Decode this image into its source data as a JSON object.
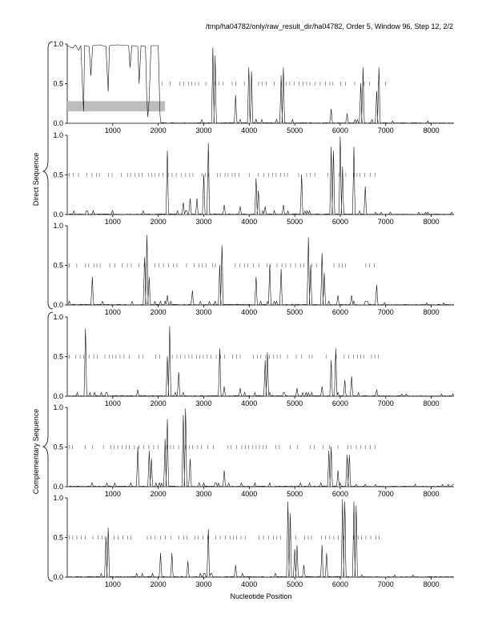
{
  "chart_data": {
    "type": "line",
    "title": "/tmp/ha04782/only/raw_result_dir/ha04782, Order 5, Window 96, Step 12, 2/2",
    "xlabel": "Nucleotide Position",
    "group_labels": [
      "Direct Sequence",
      "Complementary Sequence"
    ],
    "xlim": [
      0,
      8500
    ],
    "ylim": [
      0,
      1.0
    ],
    "x_ticks": [
      "1000",
      "2000",
      "3000",
      "4000",
      "5000",
      "6000",
      "7000",
      "8000"
    ],
    "x_tick_values": [
      1000,
      2000,
      3000,
      4000,
      5000,
      6000,
      7000,
      8000
    ],
    "y_ticks": [
      "0.0",
      "0.5",
      "1.0"
    ],
    "y_tick_values": [
      0,
      0.5,
      1.0
    ],
    "series_end": 8500,
    "panels": [
      {
        "name": "direct-frame-1",
        "high_region": [
          [
            0,
            0.98
          ],
          [
            120,
            0.95
          ],
          [
            180,
            0.99
          ],
          [
            250,
            0.92
          ],
          [
            300,
            0.98
          ],
          [
            340,
            0.4
          ],
          [
            360,
            0.15
          ],
          [
            380,
            0.98
          ],
          [
            480,
            0.97
          ],
          [
            520,
            0.6
          ],
          [
            560,
            0.98
          ],
          [
            700,
            0.99
          ],
          [
            850,
            0.97
          ],
          [
            900,
            0.4
          ],
          [
            930,
            0.98
          ],
          [
            1100,
            0.99
          ],
          [
            1350,
            0.98
          ],
          [
            1380,
            0.7
          ],
          [
            1420,
            0.98
          ],
          [
            1550,
            0.97
          ],
          [
            1580,
            0.5
          ],
          [
            1620,
            0.98
          ],
          [
            1720,
            0.97
          ],
          [
            1750,
            0.3
          ],
          [
            1770,
            0.08
          ],
          [
            1800,
            0.3
          ],
          [
            1840,
            0.98
          ],
          [
            2000,
            0.98
          ],
          [
            2040,
            0.1
          ],
          [
            2060,
            0
          ]
        ],
        "peaks": [
          [
            3200,
            0.95
          ],
          [
            3250,
            0.85
          ],
          [
            3700,
            0.35
          ],
          [
            3990,
            0.7
          ],
          [
            4050,
            0.65
          ],
          [
            4700,
            0.6
          ],
          [
            4750,
            0.7
          ],
          [
            5800,
            0.18
          ],
          [
            6150,
            0.12
          ],
          [
            6450,
            0.5
          ],
          [
            6500,
            0.7
          ],
          [
            6800,
            0.4
          ],
          [
            6850,
            0.7
          ]
        ],
        "ticks_y": 0.5,
        "tick_range": [
          2050,
          7000
        ],
        "band": {
          "x": [
            0,
            2150
          ],
          "y": [
            0.15,
            0.28
          ]
        }
      },
      {
        "name": "direct-frame-2",
        "peaks": [
          [
            2200,
            0.8
          ],
          [
            2550,
            0.15
          ],
          [
            2700,
            0.2
          ],
          [
            2850,
            0.2
          ],
          [
            3000,
            0.5
          ],
          [
            3100,
            0.9
          ],
          [
            3450,
            0.12
          ],
          [
            3800,
            0.1
          ],
          [
            4150,
            0.45
          ],
          [
            4200,
            0.3
          ],
          [
            4350,
            0.1
          ],
          [
            4750,
            0.12
          ],
          [
            5150,
            0.5
          ],
          [
            5800,
            0.85
          ],
          [
            5850,
            0.8
          ],
          [
            6000,
            0.98
          ],
          [
            6050,
            0.6
          ],
          [
            6300,
            0.85
          ],
          [
            6550,
            0.35
          ]
        ],
        "ticks_y": 0.5,
        "tick_range": [
          0,
          6900
        ]
      },
      {
        "name": "direct-frame-3",
        "peaks": [
          [
            550,
            0.35
          ],
          [
            1700,
            0.6
          ],
          [
            1750,
            0.88
          ],
          [
            1800,
            0.35
          ],
          [
            2200,
            0.12
          ],
          [
            2750,
            0.18
          ],
          [
            3350,
            0.5
          ],
          [
            3400,
            0.75
          ],
          [
            4150,
            0.35
          ],
          [
            4450,
            0.5
          ],
          [
            4700,
            0.45
          ],
          [
            5300,
            0.85
          ],
          [
            5350,
            0.5
          ],
          [
            5600,
            0.65
          ],
          [
            5650,
            0.4
          ],
          [
            5950,
            0.12
          ],
          [
            6250,
            0.12
          ],
          [
            6800,
            0.25
          ]
        ],
        "ticks_y": 0.5,
        "tick_range": [
          0,
          6900
        ]
      },
      {
        "name": "complementary-frame-1",
        "peaks": [
          [
            400,
            0.85
          ],
          [
            1550,
            0.08
          ],
          [
            2200,
            0.5
          ],
          [
            2250,
            0.88
          ],
          [
            2450,
            0.3
          ],
          [
            3350,
            0.6
          ],
          [
            3450,
            0.12
          ],
          [
            3800,
            0.1
          ],
          [
            4350,
            0.45
          ],
          [
            4400,
            0.55
          ],
          [
            5050,
            0.1
          ],
          [
            5600,
            0.12
          ],
          [
            5800,
            0.45
          ],
          [
            5900,
            0.6
          ],
          [
            6100,
            0.2
          ],
          [
            6250,
            0.25
          ],
          [
            6800,
            0.08
          ]
        ],
        "ticks_y": 0.5,
        "tick_range": [
          0,
          6900
        ]
      },
      {
        "name": "complementary-frame-2",
        "peaks": [
          [
            1550,
            0.5
          ],
          [
            1800,
            0.45
          ],
          [
            1850,
            0.35
          ],
          [
            2150,
            0.6
          ],
          [
            2200,
            0.85
          ],
          [
            2550,
            0.9
          ],
          [
            2600,
            0.98
          ],
          [
            2700,
            0.35
          ],
          [
            3450,
            0.2
          ],
          [
            5750,
            0.45
          ],
          [
            5800,
            0.5
          ],
          [
            5950,
            0.2
          ],
          [
            6150,
            0.4
          ],
          [
            6200,
            0.4
          ]
        ],
        "ticks_y": 0.5,
        "tick_range": [
          0,
          6900
        ]
      },
      {
        "name": "complementary-frame-3",
        "peaks": [
          [
            850,
            0.5
          ],
          [
            900,
            0.62
          ],
          [
            2050,
            0.3
          ],
          [
            2300,
            0.3
          ],
          [
            2650,
            0.2
          ],
          [
            3100,
            0.6
          ],
          [
            3700,
            0.15
          ],
          [
            4850,
            0.95
          ],
          [
            4900,
            0.8
          ],
          [
            5000,
            0.35
          ],
          [
            5050,
            0.4
          ],
          [
            5200,
            0.15
          ],
          [
            5600,
            0.4
          ],
          [
            5700,
            0.3
          ],
          [
            6050,
            0.98
          ],
          [
            6100,
            0.95
          ],
          [
            6300,
            0.95
          ],
          [
            6350,
            0.9
          ]
        ],
        "ticks_y": 0.5,
        "tick_range": [
          0,
          6900
        ]
      }
    ]
  }
}
